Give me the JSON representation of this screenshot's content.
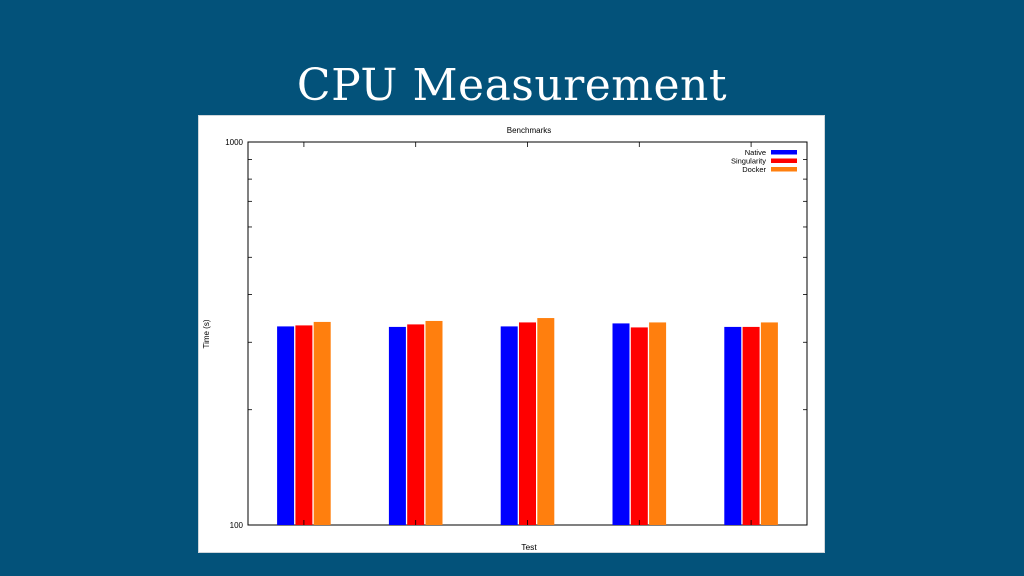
{
  "slide": {
    "title": "CPU Measurement",
    "background": "#03527a"
  },
  "chart_data": {
    "type": "bar",
    "title": "Benchmarks",
    "xlabel": "Test",
    "ylabel": "Time (s)",
    "yscale": "log",
    "ylim": [
      100,
      1000
    ],
    "ytick_labels": [
      "100",
      "1000"
    ],
    "grid": false,
    "legend_position": "top-right",
    "categories": [
      "",
      "",
      "",
      "",
      ""
    ],
    "series": [
      {
        "name": "Native",
        "color": "#0000ff",
        "values": [
          330,
          329,
          330,
          336,
          329
        ]
      },
      {
        "name": "Singularity",
        "color": "#ff0000",
        "values": [
          332,
          334,
          338,
          328,
          329
        ]
      },
      {
        "name": "Docker",
        "color": "#ff7f0e",
        "values": [
          339,
          341,
          347,
          338,
          338
        ]
      }
    ]
  }
}
